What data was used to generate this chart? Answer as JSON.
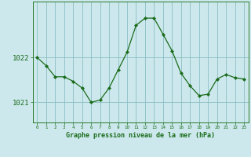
{
  "hours": [
    0,
    1,
    2,
    3,
    4,
    5,
    6,
    7,
    8,
    9,
    10,
    11,
    12,
    13,
    14,
    15,
    16,
    17,
    18,
    19,
    20,
    21,
    22,
    23
  ],
  "pressure": [
    1022.0,
    1021.82,
    1021.57,
    1021.57,
    1021.47,
    1021.32,
    1021.0,
    1021.05,
    1021.32,
    1021.72,
    1022.12,
    1022.72,
    1022.88,
    1022.88,
    1022.52,
    1022.15,
    1021.65,
    1021.37,
    1021.15,
    1021.18,
    1021.52,
    1021.62,
    1021.55,
    1021.52
  ],
  "line_color": "#1a6b1a",
  "marker_color": "#1a6b1a",
  "background_color": "#cce8ec",
  "grid_color": "#8abfc4",
  "axis_color": "#2a7a2a",
  "xlabel": "Graphe pression niveau de la mer (hPa)",
  "xlabel_color": "#1a6b1a",
  "tick_label_color": "#1a6b1a",
  "ytick_labels": [
    "1021",
    "1022"
  ],
  "ylim": [
    1020.55,
    1023.25
  ],
  "yticks": [
    1021.0,
    1022.0
  ],
  "xlim": [
    -0.5,
    23.5
  ]
}
